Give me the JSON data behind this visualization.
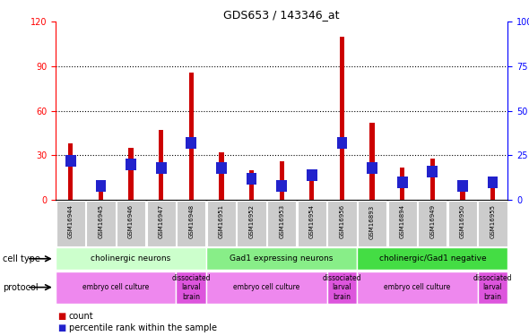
{
  "title": "GDS653 / 143346_at",
  "samples": [
    "GSM16944",
    "GSM16945",
    "GSM16946",
    "GSM16947",
    "GSM16948",
    "GSM16951",
    "GSM16952",
    "GSM16953",
    "GSM16954",
    "GSM16956",
    "GSM16893",
    "GSM16894",
    "GSM16949",
    "GSM16950",
    "GSM16955"
  ],
  "count_values": [
    38,
    8,
    35,
    47,
    86,
    32,
    20,
    26,
    20,
    110,
    52,
    22,
    28,
    12,
    13
  ],
  "percentile_values": [
    22,
    8,
    20,
    18,
    32,
    18,
    12,
    8,
    14,
    32,
    18,
    10,
    16,
    8,
    10
  ],
  "bar_color_red": "#cc0000",
  "bar_color_blue": "#2222cc",
  "ylim_left": [
    0,
    120
  ],
  "ylim_right": [
    0,
    100
  ],
  "yticks_left": [
    0,
    30,
    60,
    90,
    120
  ],
  "ytick_labels_left": [
    "0",
    "30",
    "60",
    "90",
    "120"
  ],
  "yticks_right": [
    0,
    25,
    50,
    75,
    100
  ],
  "ytick_labels_right": [
    "0",
    "25",
    "50",
    "75",
    "100%"
  ],
  "cell_type_groups": [
    {
      "label": "cholinergic neurons",
      "start": 0,
      "end": 5,
      "color": "#ccffcc"
    },
    {
      "label": "Gad1 expressing neurons",
      "start": 5,
      "end": 10,
      "color": "#88ee88"
    },
    {
      "label": "cholinergic/Gad1 negative",
      "start": 10,
      "end": 15,
      "color": "#44dd44"
    }
  ],
  "protocol_groups": [
    {
      "label": "embryo cell culture",
      "start": 0,
      "end": 4,
      "color": "#ee88ee"
    },
    {
      "label": "dissociated\nlarval\nbrain",
      "start": 4,
      "end": 5,
      "color": "#dd55dd"
    },
    {
      "label": "embryo cell culture",
      "start": 5,
      "end": 9,
      "color": "#ee88ee"
    },
    {
      "label": "dissociated\nlarval\nbrain",
      "start": 9,
      "end": 10,
      "color": "#dd55dd"
    },
    {
      "label": "embryo cell culture",
      "start": 10,
      "end": 14,
      "color": "#ee88ee"
    },
    {
      "label": "dissociated\nlarval\nbrain",
      "start": 14,
      "end": 15,
      "color": "#dd55dd"
    }
  ],
  "legend_count_label": "count",
  "legend_percentile_label": "percentile rank within the sample",
  "cell_type_label": "cell type",
  "protocol_label": "protocol",
  "bg_color": "#ffffff"
}
